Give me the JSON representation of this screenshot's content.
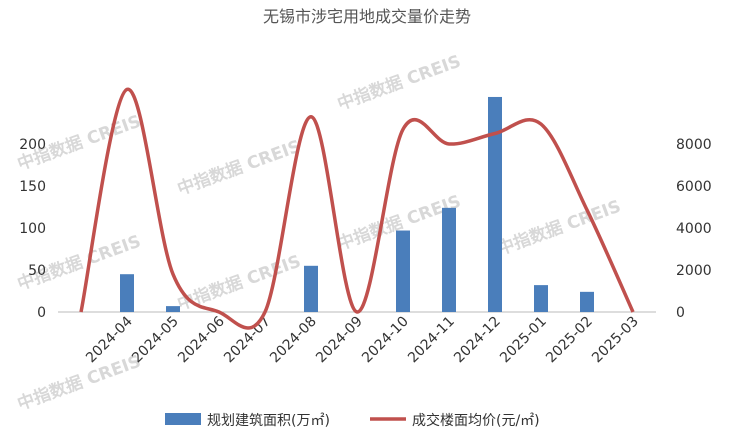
{
  "chart_data": {
    "type": "bar-line",
    "title": "无锡市涉宅用地成交量价走势",
    "categories": [
      null,
      "2024-04",
      "2024-05",
      "2024-06",
      "2024-07",
      "2024-08",
      "2024-09",
      "2024-10",
      "2024-11",
      "2024-12",
      "2025-01",
      "2025-02",
      "2025-03"
    ],
    "series": [
      {
        "name": "规划建筑面积(万㎡)",
        "color": "#4a7ebb",
        "type": "bar",
        "values": [
          0,
          45,
          7,
          0,
          0,
          55,
          0,
          97,
          124,
          256,
          32,
          24,
          0
        ]
      },
      {
        "name": "成交楼面均价(元/㎡)",
        "color": "#c0504d",
        "type": "line",
        "axis": "y2",
        "values": [
          0,
          10600,
          1800,
          0,
          0,
          9300,
          0,
          8700,
          8000,
          8500,
          8950,
          4860,
          0
        ]
      }
    ],
    "ylim": [
      0,
      300
    ],
    "yticks": [
      0,
      50,
      100,
      150,
      200
    ],
    "y2lim": [
      0,
      12000
    ],
    "y2ticks": [
      0,
      2000,
      4000,
      6000,
      8000
    ]
  }
}
